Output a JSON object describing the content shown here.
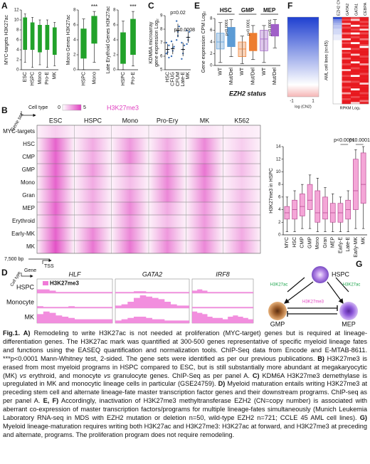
{
  "panel_a": {
    "label": "A",
    "color": "#22a22a",
    "plots": [
      {
        "ylabel": "MYC-targets H3K27ac",
        "ylim": [
          0,
          12
        ],
        "yticks": [
          0,
          2,
          4,
          6,
          8,
          10,
          12
        ],
        "categories": [
          "ESC",
          "HSPC",
          "Mono",
          "Pro-E",
          "MK"
        ],
        "boxes": [
          [
            1.5,
            4,
            10.5,
            11.2
          ],
          [
            0.5,
            4,
            9.5,
            10.5
          ],
          [
            1,
            3.5,
            9,
            10
          ],
          [
            0.5,
            4,
            9,
            10
          ],
          [
            0.8,
            3,
            8.5,
            9.5
          ]
        ]
      },
      {
        "ylabel": "Mono Genes H3K27ac",
        "ylim": [
          0,
          8
        ],
        "yticks": [
          0,
          2,
          4,
          6,
          8
        ],
        "categories": [
          "HSPC",
          "Mono"
        ],
        "boxes": [
          [
            0,
            1.5,
            5.5,
            6.8
          ],
          [
            1,
            3.5,
            7.2,
            7.8
          ]
        ],
        "annotation": "***"
      },
      {
        "ylabel": "Late Erythoid Genes H3K27ac",
        "ylim": [
          0,
          8
        ],
        "yticks": [
          0,
          2,
          4,
          6,
          8
        ],
        "categories": [
          "HSPC",
          "Pro-E"
        ],
        "boxes": [
          [
            0,
            0.8,
            5,
            6.5
          ],
          [
            0.5,
            2,
            6.8,
            7.8
          ]
        ],
        "annotation": "***"
      }
    ]
  },
  "panel_c": {
    "label": "C",
    "ylabel_lines": [
      "KDM6A microarray",
      "gene expression Log₂"
    ],
    "ylim": [
      5,
      9
    ],
    "yticks": [
      5,
      6,
      7,
      8,
      9
    ],
    "color": "#3b6fb6",
    "categories": [
      "HSC",
      "CFUG",
      "CFUM",
      "Late-E",
      "MK"
    ],
    "points": [
      [
        6.2,
        6.5,
        6.8,
        7.0,
        6.3,
        5.9
      ],
      [
        6.0,
        6.4,
        6.7,
        7.1,
        6.6
      ],
      [
        7.2,
        7.8,
        8.2,
        8.6,
        7.5
      ],
      [
        5.8,
        6.2,
        6.8,
        7.0,
        6.5
      ],
      [
        6.9,
        7.4,
        7.8,
        7.9,
        7.2
      ]
    ],
    "means": [
      6.5,
      6.55,
      7.9,
      6.5,
      7.4
    ],
    "sd": [
      0.4,
      0.4,
      0.5,
      0.5,
      0.4
    ],
    "annotations": [
      "p=0.02",
      "p=0.0008"
    ]
  },
  "panel_e": {
    "label": "E",
    "ylabel": "Gene expression CPM Log₂",
    "ylim": [
      0,
      8
    ],
    "yticks": [
      0,
      2,
      4,
      6,
      8
    ],
    "xlabel": "EZH2 status",
    "groups": [
      {
        "name": "HSC",
        "color": "#5b9bd5",
        "categories": [
          "WT",
          "Mut/Del"
        ],
        "boxes": [
          [
            0.5,
            2.8,
            4,
            5.5,
            7.3
          ],
          [
            1.5,
            3.2,
            5,
            6.5,
            7.8
          ]
        ],
        "annotation": "p<0.0001"
      },
      {
        "name": "GMP",
        "color": "#ed7d31",
        "categories": [
          "WT",
          "Mut/Del"
        ],
        "boxes": [
          [
            0.3,
            1.5,
            2.8,
            4,
            5
          ],
          [
            1,
            2.5,
            4,
            5.5,
            6.8
          ]
        ],
        "annotation": "p<0.0001"
      },
      {
        "name": "MEP",
        "color": "#a05fc8",
        "categories": [
          "WT",
          "Mut/Del"
        ],
        "boxes": [
          [
            0.5,
            2.5,
            4.5,
            6,
            6.8
          ],
          [
            3,
            5,
            6.2,
            7,
            7.8
          ]
        ],
        "annotation": "p<0.0001"
      }
    ]
  },
  "panel_f": {
    "label": "F",
    "columns": [
      "EZH2 CN",
      "GATA2",
      "GATA1",
      "CEBPA"
    ],
    "ylabel": "AML cell lines (n=45)",
    "colorbar_ticks": [
      -1,
      1
    ],
    "colorbar_label": "log (CN2)",
    "rpkm_label": "RPKM Log₂",
    "rows": [
      [
        -1,
        5,
        4,
        5
      ],
      [
        -0.6,
        4,
        1,
        5
      ],
      [
        -0.5,
        5,
        5,
        4
      ],
      [
        -0.4,
        2,
        5,
        5
      ],
      [
        -0.3,
        5,
        0,
        4
      ],
      [
        -0.3,
        4,
        5,
        5
      ],
      [
        -0.2,
        5,
        4,
        1
      ],
      [
        -0.2,
        5,
        5,
        5
      ],
      [
        -0.2,
        3,
        0,
        4
      ],
      [
        -0.1,
        5,
        5,
        5
      ],
      [
        -0.1,
        5,
        4,
        5
      ],
      [
        -0.1,
        1,
        5,
        3
      ],
      [
        0,
        5,
        5,
        5
      ],
      [
        0,
        4,
        0,
        5
      ],
      [
        0,
        5,
        5,
        4
      ],
      [
        0,
        5,
        5,
        0
      ],
      [
        0,
        0,
        4,
        5
      ],
      [
        0,
        5,
        5,
        5
      ],
      [
        0,
        4,
        5,
        5
      ],
      [
        0,
        5,
        1,
        5
      ],
      [
        0,
        5,
        5,
        4
      ],
      [
        0,
        3,
        5,
        5
      ],
      [
        0,
        5,
        5,
        5
      ],
      [
        0,
        5,
        0,
        5
      ],
      [
        0,
        4,
        5,
        2
      ],
      [
        0,
        5,
        5,
        5
      ],
      [
        0,
        5,
        4,
        5
      ],
      [
        0,
        1,
        5,
        5
      ],
      [
        0,
        5,
        5,
        5
      ],
      [
        0,
        5,
        5,
        4
      ],
      [
        0,
        4,
        0,
        5
      ],
      [
        0,
        5,
        5,
        5
      ],
      [
        0,
        5,
        5,
        5
      ],
      [
        0,
        3,
        4,
        5
      ],
      [
        0,
        5,
        5,
        1
      ],
      [
        0,
        5,
        5,
        5
      ],
      [
        0,
        4,
        5,
        5
      ],
      [
        0,
        5,
        0,
        5
      ],
      [
        0,
        5,
        5,
        5
      ],
      [
        0,
        2,
        5,
        4
      ],
      [
        0,
        5,
        5,
        5
      ],
      [
        0,
        5,
        4,
        5
      ],
      [
        0,
        4,
        5,
        5
      ],
      [
        0,
        5,
        5,
        3
      ],
      [
        0,
        5,
        1,
        5
      ]
    ]
  },
  "panel_b": {
    "label": "B",
    "cell_type_label": "Cell type",
    "gene_set_label": "Gene set",
    "colorbar_ticks": [
      0,
      5
    ],
    "colorbar_label": "H3K27me3",
    "color": "#e040c0",
    "columns": [
      "ESC",
      "HSPC",
      "Mono",
      "Pro-Ery",
      "MK",
      "K562"
    ],
    "rows": [
      "MYC-targets",
      "HSC",
      "CMP",
      "GMP",
      "Mono",
      "Gran",
      "MEP",
      "Erythroid",
      "Early-MK",
      "MK"
    ],
    "intensity": [
      [
        1,
        0.5,
        0.5,
        0.5,
        0.5,
        0.3
      ],
      [
        4,
        2,
        2.5,
        2,
        3,
        1
      ],
      [
        4,
        2,
        3,
        2.5,
        3,
        1.5
      ],
      [
        4,
        2.5,
        2,
        3,
        3.5,
        1.5
      ],
      [
        4,
        2,
        1.5,
        3,
        3,
        1
      ],
      [
        3.5,
        2,
        2.5,
        3,
        3,
        1.5
      ],
      [
        4,
        2,
        3,
        2,
        2.5,
        1.5
      ],
      [
        3.5,
        1.5,
        2.5,
        1.5,
        2.5,
        1.5
      ],
      [
        4,
        3,
        3,
        2.5,
        2.5,
        2
      ],
      [
        4.5,
        3.5,
        3.5,
        3,
        3,
        2.5
      ]
    ],
    "scale_label": "7,500 bp",
    "tss_label": "TSS"
  },
  "panel_b_box": {
    "ylabel": "H3K27me3 in HSPC",
    "ylim": [
      0,
      14
    ],
    "yticks": [
      0,
      2,
      4,
      6,
      8,
      10,
      12,
      14
    ],
    "color": "#f4a6d7",
    "categories": [
      "MYC",
      "HSC",
      "CMP",
      "GMP",
      "Mono",
      "Gran",
      "MEP",
      "Early-E",
      "Late-E",
      "Early-MK",
      "MK"
    ],
    "boxes": [
      [
        0.5,
        2.5,
        3.5,
        4.5,
        6
      ],
      [
        0.5,
        2.5,
        4,
        5.5,
        7
      ],
      [
        1,
        3,
        4.5,
        6.5,
        8
      ],
      [
        1,
        4,
        5.5,
        8,
        9.5
      ],
      [
        0.5,
        2,
        3.5,
        7,
        9
      ],
      [
        0.5,
        2.5,
        3.5,
        6,
        7.5
      ],
      [
        0.5,
        2,
        3.5,
        5,
        6.5
      ],
      [
        0.5,
        2,
        3.5,
        5,
        6
      ],
      [
        0.5,
        2.5,
        4,
        5.5,
        7
      ],
      [
        1,
        4,
        7,
        12,
        13.5
      ],
      [
        1,
        5,
        8,
        13,
        14
      ]
    ],
    "annotations": [
      "p<0.0001",
      "p<0.0001"
    ]
  },
  "panel_d": {
    "label": "D",
    "gene_label": "Gene",
    "cell_type_label": "Cell type",
    "legend": "H3K27me3",
    "color": "#f07ad8",
    "genes": [
      "HLF",
      "GATA2",
      "IRF8"
    ],
    "cell_types": [
      "HSPC",
      "Monocyte",
      "MK"
    ],
    "signals": [
      [
        [
          0.3,
          0.3,
          0.2,
          0.1,
          0.1,
          0.1,
          0.1,
          0.1,
          0.1,
          0.1,
          0.1,
          0.1
        ],
        [
          0.15,
          0.1,
          0.1,
          0.1,
          0.1,
          0.15,
          0.1,
          0.1,
          0.1,
          0.1,
          0.1,
          0.1
        ],
        [
          0.7,
          0.9,
          0.8,
          0.6,
          0.5,
          0.4,
          0.3,
          0.3,
          0.3,
          0.3,
          0.3,
          0.3
        ]
      ],
      [
        [
          0.1,
          0.1,
          0.1,
          0.15,
          0.15,
          0.1,
          0.1,
          0.1,
          0.1,
          0.1,
          0.1,
          0.1
        ],
        [
          0.2,
          0.3,
          0.5,
          0.8,
          1,
          0.9,
          0.8,
          0.7,
          0.5,
          0.3,
          0.2,
          0.2
        ],
        [
          0.2,
          0.3,
          0.4,
          0.5,
          0.5,
          0.4,
          0.3,
          0.3,
          0.2,
          0.2,
          0.2,
          0.2
        ]
      ],
      [
        [
          0.2,
          0.3,
          0.2,
          0.1,
          0.1,
          0.1,
          0.1,
          0.1,
          0.1,
          0.1,
          0.1,
          0.1
        ],
        [
          0.1,
          0.1,
          0.1,
          0.1,
          0.1,
          0.1,
          0.1,
          0.1,
          0.1,
          0.1,
          0.1,
          0.1
        ],
        [
          0.9,
          0.8,
          0.7,
          0.5,
          0.4,
          0.4,
          0.3,
          0.5,
          0.6,
          0.5,
          0.4,
          0.3
        ]
      ]
    ]
  },
  "panel_g": {
    "label": "G",
    "nodes": [
      "HSPC",
      "GMP",
      "MEP"
    ],
    "edges": [
      "H3K27ac",
      "H3K27ac",
      "H3K27me3"
    ]
  },
  "caption": [
    {
      "text": "Fig.1. A)",
      "bold": true
    },
    {
      "text": " Remodeling to write H3K27ac is not needed at proliferation (MYC-target) genes but is required at lineage-differentiation genes. The H3K27ac mark was quantified at 300-500 genes representative of specific myeloid lineage fates and functions using the EASEQ quantification and normalization tools. ChIP-Seq data from Encode and E-MTAB-8611. ***p<0.0001 Mann-Whitney test, 2-sided. The gene sets were identified as per our previous publications. "
    },
    {
      "text": "B)",
      "bold": true
    },
    {
      "text": " H3K27me3 is erased from most myeloid programs in HSPC compared to ESC, but is still substantially more abundant at megakaryocytic (MK) "
    },
    {
      "text": "vs",
      "italic": true
    },
    {
      "text": " erythroid, and monocyte "
    },
    {
      "text": "vs",
      "italic": true
    },
    {
      "text": " granulocyte genes. ChIP-Seq as per panel A. "
    },
    {
      "text": "C)",
      "bold": true
    },
    {
      "text": " KDM6A H3K27me3 demethylase is upregulated in MK and monocytic lineage cells in particular (GSE24759). "
    },
    {
      "text": "D)",
      "bold": true
    },
    {
      "text": " Myeloid maturation entails writing H3K27me3 at preceding stem cell and alternate lineage-fate master transcription factor genes and their downstream programs. ChIP-seq as per panel A. "
    },
    {
      "text": "E, F)",
      "bold": true
    },
    {
      "text": " Accordingly, inactivation of H3K27me3 methyltransferase EZH2 (CN=copy number) is associated with aberrant co-expression of master transcription factors/programs for multiple lineage-fates simultaneously (Munich Leukemia Laboratory RNA-seq in MDS with EZH2 mutation or deletion n=50, wild-type EZH2 n=721; CCLE 45 AML cell lines). "
    },
    {
      "text": "G)",
      "bold": true
    },
    {
      "text": " Myeloid lineage-maturation requires writing both H3K27ac and H3K27me3: H3K27ac at forward, and H3K27me3 at preceding and alternate, programs. The proliferation program does not require remodeling."
    }
  ]
}
